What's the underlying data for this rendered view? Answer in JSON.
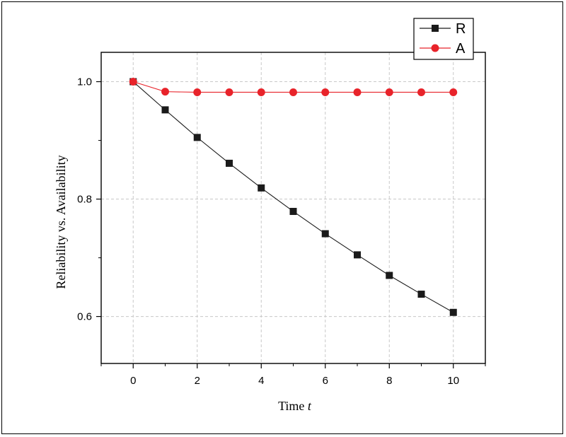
{
  "chart_data": {
    "type": "line",
    "title": "",
    "xlabel": "Time t",
    "ylabel": "Reliability vs. Availability",
    "xlim": [
      -1,
      11
    ],
    "ylim": [
      0.52,
      1.05
    ],
    "x_ticks": [
      0,
      2,
      4,
      6,
      8,
      10
    ],
    "y_ticks": [
      0.6,
      0.8,
      1.0
    ],
    "y_tick_labels": [
      "0.6",
      "0.8",
      "1.0"
    ],
    "grid": true,
    "legend_position": "top-right",
    "series": [
      {
        "name": "R",
        "color": "#1a1a1a",
        "marker": "square",
        "x": [
          0,
          1,
          2,
          3,
          4,
          5,
          6,
          7,
          8,
          9,
          10
        ],
        "y": [
          1.0,
          0.952,
          0.905,
          0.861,
          0.819,
          0.779,
          0.741,
          0.705,
          0.67,
          0.638,
          0.607
        ]
      },
      {
        "name": "A",
        "color": "#e8232a",
        "marker": "circle",
        "x": [
          0,
          1,
          2,
          3,
          4,
          5,
          6,
          7,
          8,
          9,
          10
        ],
        "y": [
          1.0,
          0.983,
          0.982,
          0.982,
          0.982,
          0.982,
          0.982,
          0.982,
          0.982,
          0.982,
          0.982
        ]
      }
    ]
  }
}
